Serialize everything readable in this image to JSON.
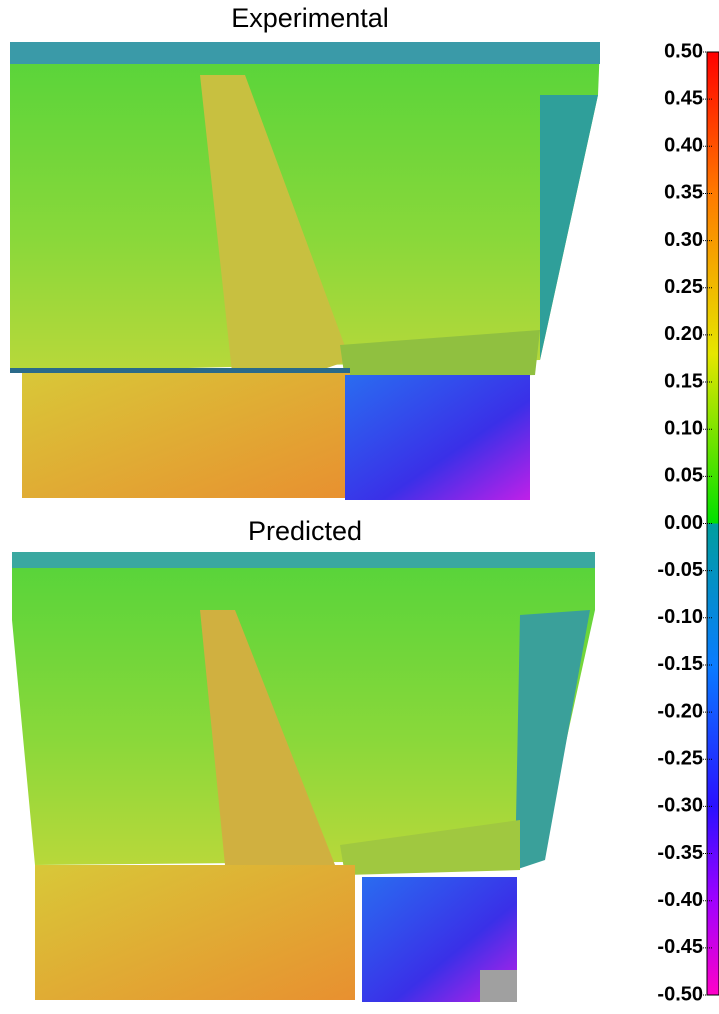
{
  "panels": [
    {
      "title": "Experimental"
    },
    {
      "title": "Predicted"
    }
  ],
  "colorbar": {
    "ticks": [
      {
        "value": 0.5,
        "label": "0.50"
      },
      {
        "value": 0.45,
        "label": "0.45"
      },
      {
        "value": 0.4,
        "label": "0.40"
      },
      {
        "value": 0.35,
        "label": "0.35"
      },
      {
        "value": 0.3,
        "label": "0.30"
      },
      {
        "value": 0.25,
        "label": "0.25"
      },
      {
        "value": 0.2,
        "label": "0.20"
      },
      {
        "value": 0.15,
        "label": "0.15"
      },
      {
        "value": 0.1,
        "label": "0.10"
      },
      {
        "value": 0.05,
        "label": "0.05"
      },
      {
        "value": 0,
        "label": "0.00"
      },
      {
        "value": -0.05,
        "label": "-0.05"
      },
      {
        "value": -0.1,
        "label": "-0.10"
      },
      {
        "value": -0.15,
        "label": "-0.15"
      },
      {
        "value": -0.2,
        "label": "-0.20"
      },
      {
        "value": -0.25,
        "label": "-0.25"
      },
      {
        "value": -0.3,
        "label": "-0.30"
      },
      {
        "value": -0.35,
        "label": "-0.35"
      },
      {
        "value": -0.4,
        "label": "-0.40"
      },
      {
        "value": -0.45,
        "label": "-0.45"
      },
      {
        "value": -0.5,
        "label": "-0.50"
      }
    ]
  }
}
